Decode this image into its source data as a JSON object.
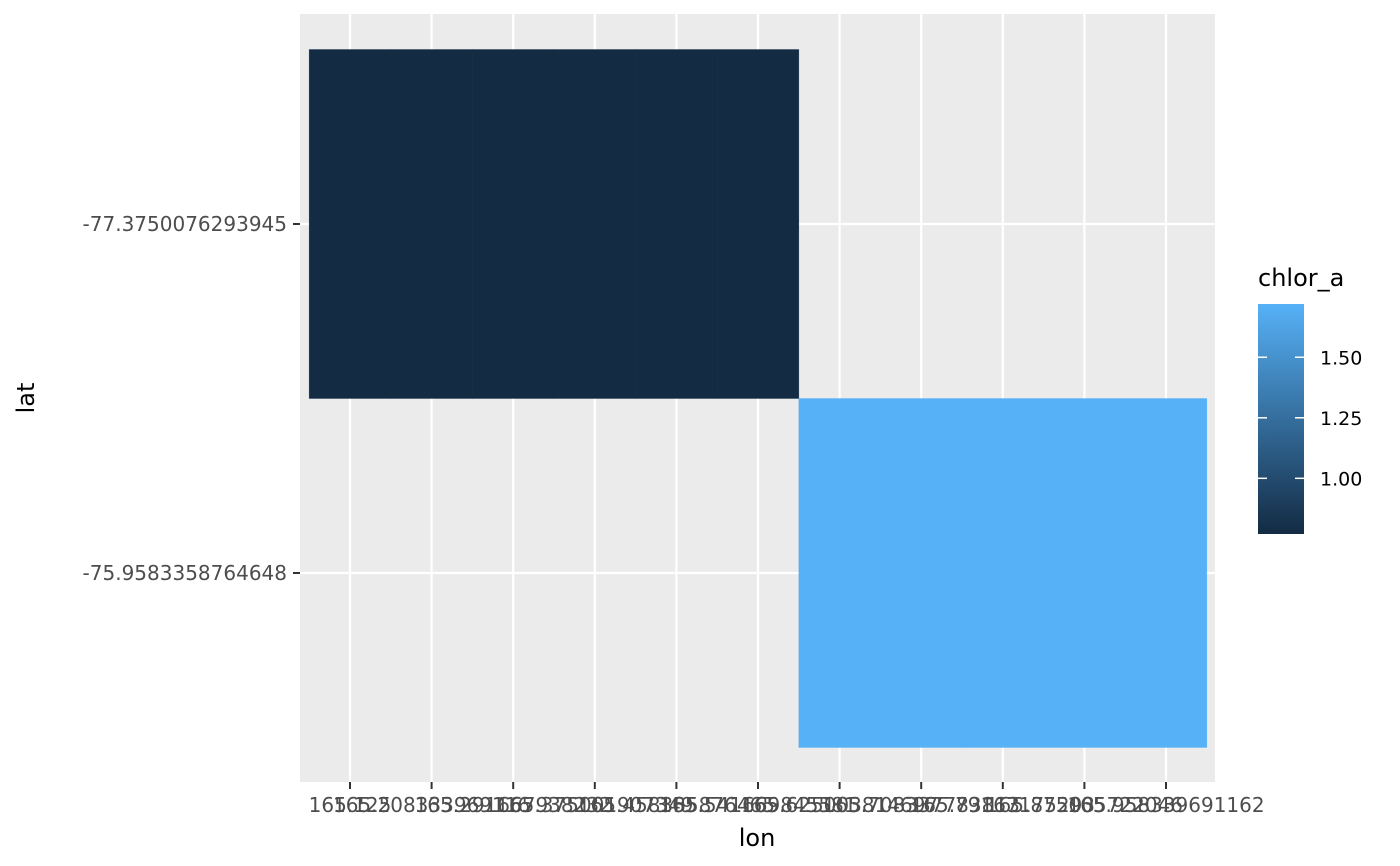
{
  "chart_data": {
    "type": "heatmap",
    "xlabel": "lon",
    "ylabel": "lat",
    "x_ticks": [
      "165.125",
      "165.208333969116",
      "165.291667938232",
      "165.375001907349",
      "165.458335876465",
      "165.541669845581",
      "165.625003814697",
      "165.708337783813",
      "165.79167175293",
      "165.875005722046",
      "165.958339691162"
    ],
    "y_ticks": [
      "-77.3750076293945",
      "-75.9583358764648"
    ],
    "tiles": [
      {
        "lon": "165.125",
        "lat": "-77.3750076293945",
        "chlor_a": 0.77
      },
      {
        "lon": "165.208333969116",
        "lat": "-77.3750076293945",
        "chlor_a": 0.77
      },
      {
        "lon": "165.291667938232",
        "lat": "-77.3750076293945",
        "chlor_a": 0.77
      },
      {
        "lon": "165.375001907349",
        "lat": "-77.3750076293945",
        "chlor_a": 0.77
      },
      {
        "lon": "165.458335876465",
        "lat": "-77.3750076293945",
        "chlor_a": 0.77
      },
      {
        "lon": "165.541669845581",
        "lat": "-77.3750076293945",
        "chlor_a": 0.77
      },
      {
        "lon": "165.625003814697",
        "lat": "-75.9583358764648",
        "chlor_a": 1.72
      },
      {
        "lon": "165.708337783813",
        "lat": "-75.9583358764648",
        "chlor_a": 1.72
      },
      {
        "lon": "165.79167175293",
        "lat": "-75.9583358764648",
        "chlor_a": 1.72
      },
      {
        "lon": "165.875005722046",
        "lat": "-75.9583358764648",
        "chlor_a": 1.72
      },
      {
        "lon": "165.958339691162",
        "lat": "-75.9583358764648",
        "chlor_a": 1.72
      }
    ],
    "legend": {
      "title": "chlor_a",
      "range": [
        0.77,
        1.72
      ],
      "breaks": [
        {
          "value": 1.0,
          "label": "1.00"
        },
        {
          "value": 1.25,
          "label": "1.25"
        },
        {
          "value": 1.5,
          "label": "1.50"
        }
      ],
      "low_color": "#132B43",
      "high_color": "#56B1F7",
      "placement": "right"
    },
    "panel_background": "#EBEBEB",
    "grid": true
  }
}
